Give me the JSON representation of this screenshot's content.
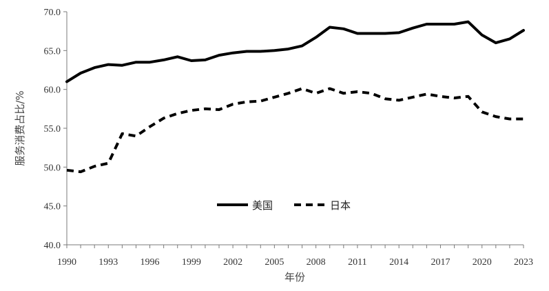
{
  "chart_data": {
    "type": "line",
    "xlabel": "年份",
    "ylabel": "服务消费占比/%",
    "ylim": [
      40,
      70
    ],
    "y_ticks": [
      "40.0",
      "45.0",
      "50.0",
      "55.0",
      "60.0",
      "65.0",
      "70.0"
    ],
    "x_ticks": [
      "1990",
      "1993",
      "1996",
      "1999",
      "2002",
      "2005",
      "2008",
      "2011",
      "2014",
      "2017",
      "2020",
      "2023"
    ],
    "grid": false,
    "legend_position": "center",
    "x": [
      1990,
      1991,
      1992,
      1993,
      1994,
      1995,
      1996,
      1997,
      1998,
      1999,
      2000,
      2001,
      2002,
      2003,
      2004,
      2005,
      2006,
      2007,
      2008,
      2009,
      2010,
      2011,
      2012,
      2013,
      2014,
      2015,
      2016,
      2017,
      2018,
      2019,
      2020,
      2021,
      2022,
      2023
    ],
    "series": [
      {
        "name": "美国",
        "style": "solid",
        "color": "#000000",
        "values": [
          61.0,
          62.1,
          62.8,
          63.2,
          63.1,
          63.5,
          63.5,
          63.8,
          64.2,
          63.7,
          63.8,
          64.4,
          64.7,
          64.9,
          64.9,
          65.0,
          65.2,
          65.6,
          66.7,
          68.0,
          67.8,
          67.2,
          67.2,
          67.2,
          67.3,
          67.9,
          68.4,
          68.4,
          68.4,
          68.7,
          67.0,
          66.0,
          66.5,
          67.6
        ]
      },
      {
        "name": "日本",
        "style": "dashed",
        "color": "#000000",
        "values": [
          49.6,
          49.4,
          50.1,
          50.5,
          54.3,
          54.0,
          55.2,
          56.3,
          56.9,
          57.3,
          57.5,
          57.4,
          58.1,
          58.4,
          58.5,
          59.0,
          59.5,
          60.1,
          59.5,
          60.1,
          59.5,
          59.7,
          59.5,
          58.8,
          58.6,
          59.0,
          59.4,
          59.1,
          58.9,
          59.1,
          57.1,
          56.5,
          56.2,
          56.2
        ]
      }
    ]
  }
}
